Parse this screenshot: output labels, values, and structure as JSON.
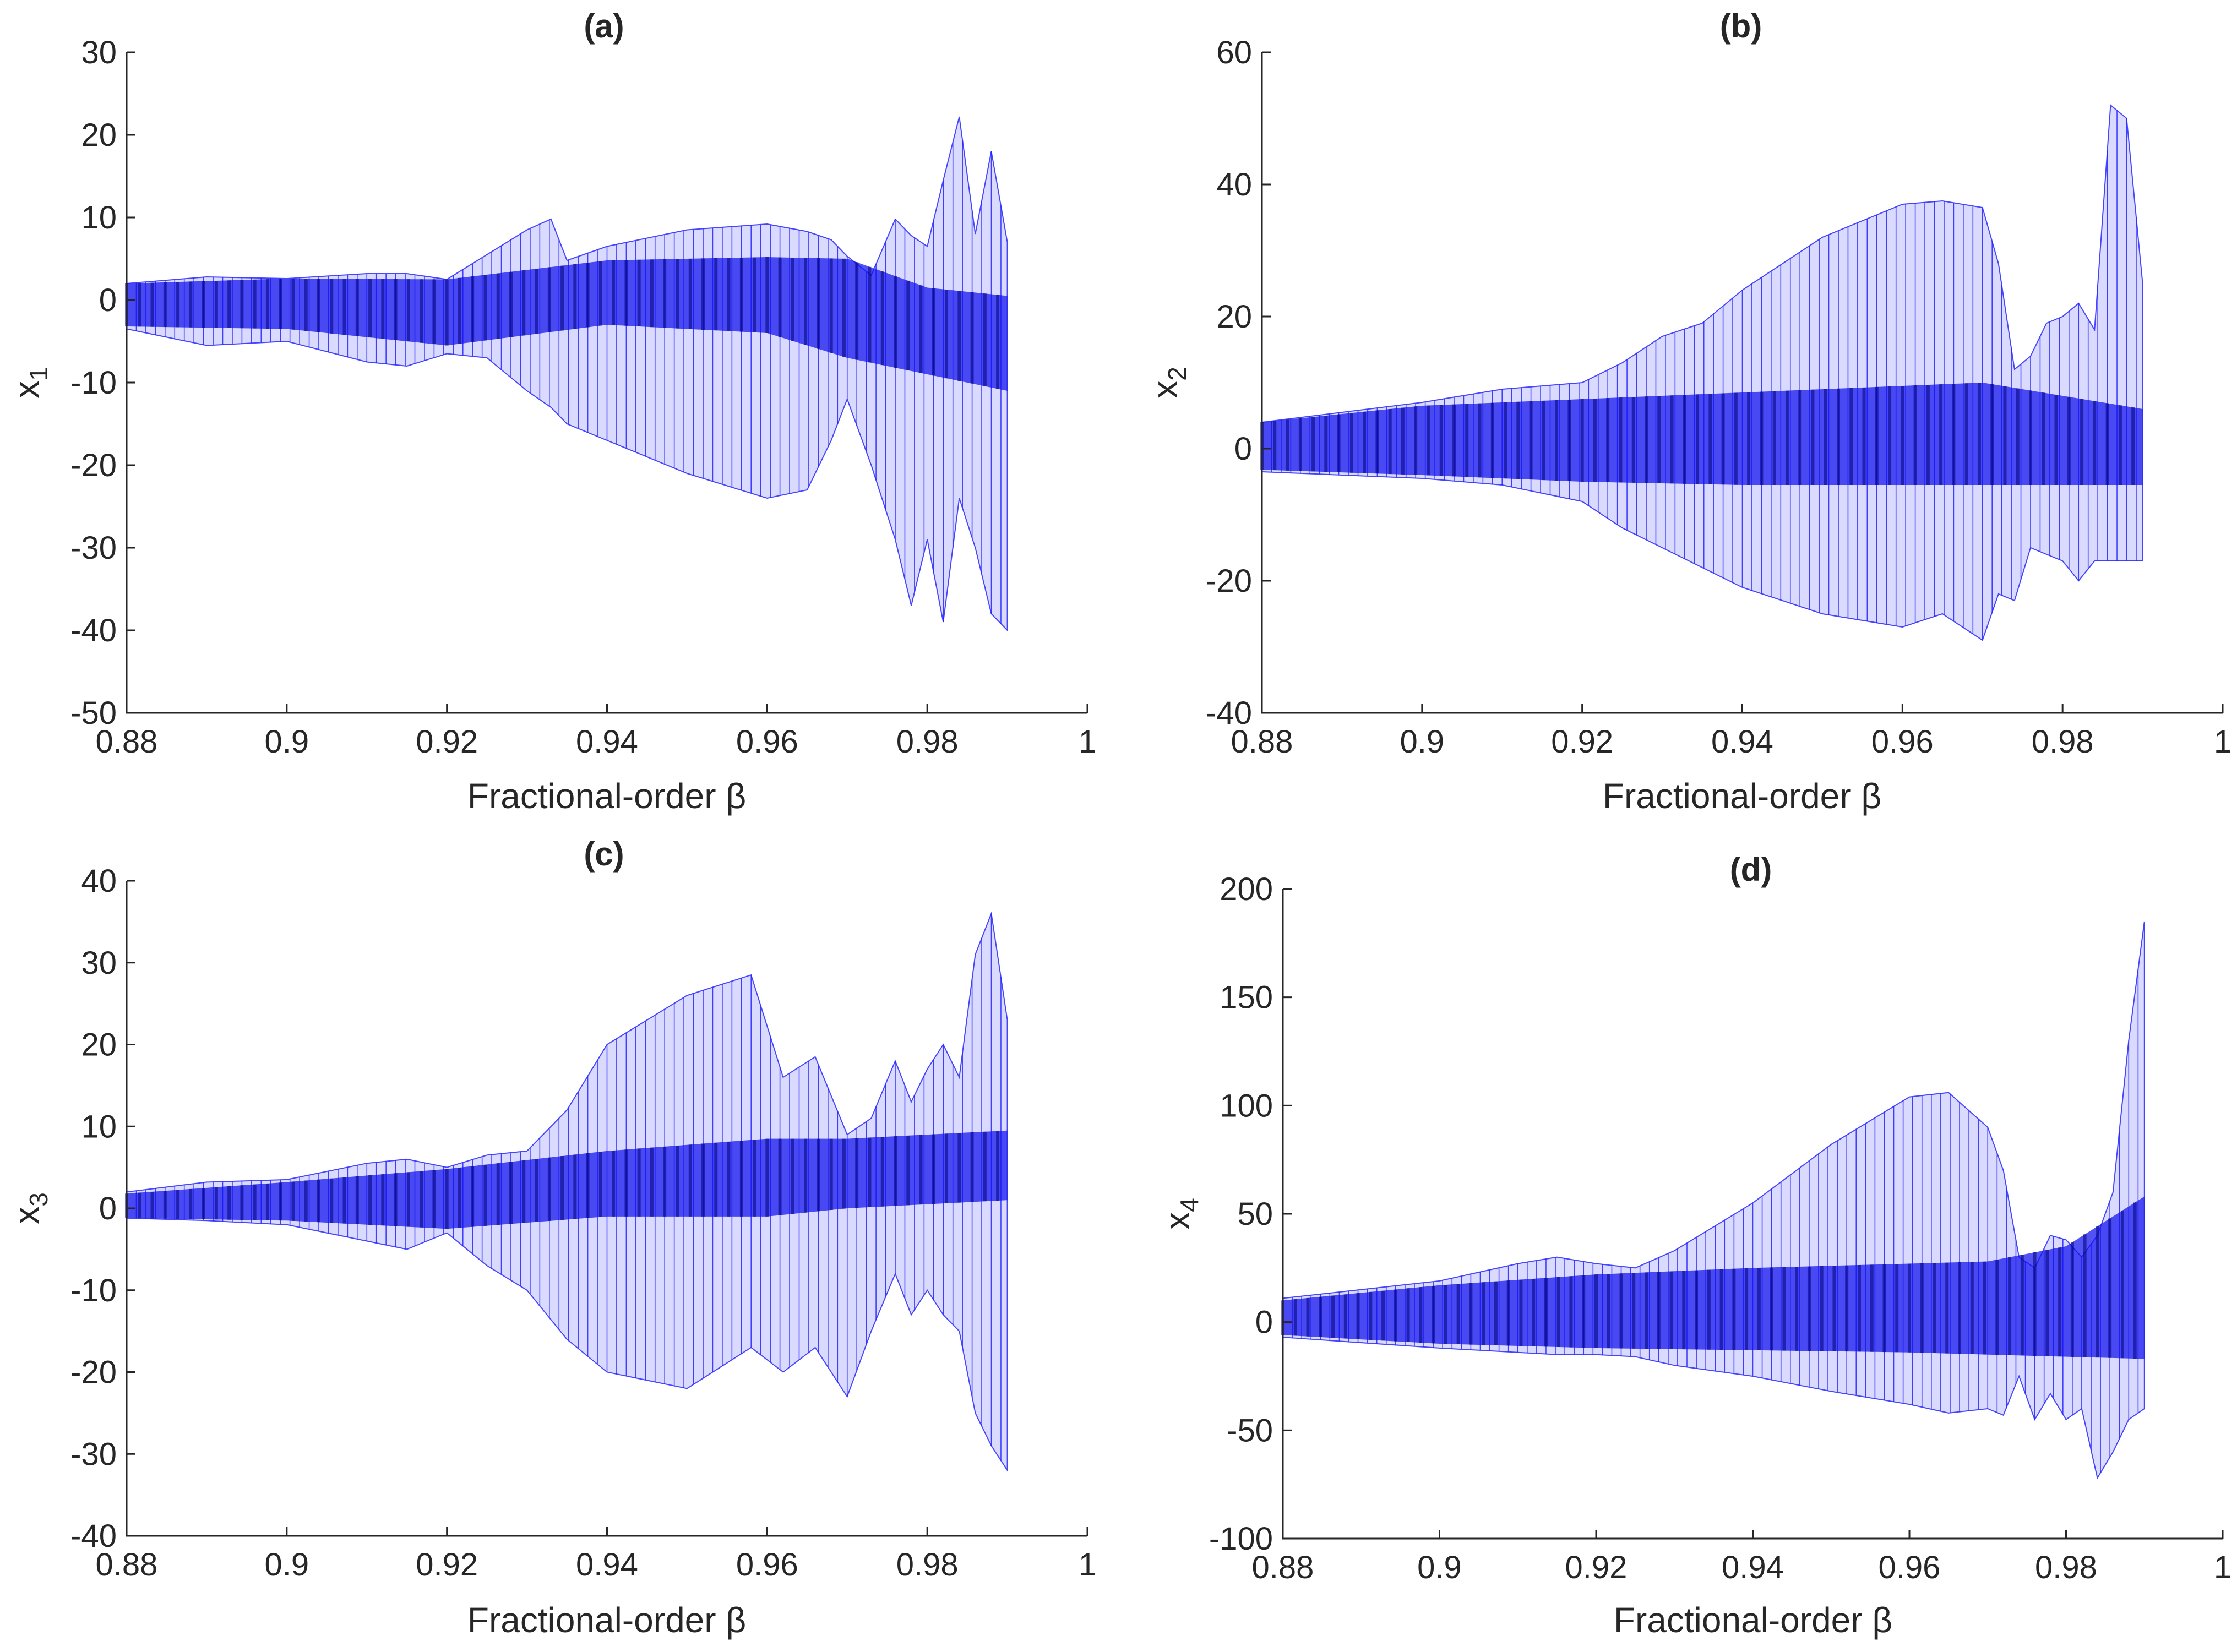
{
  "chart_data": [
    {
      "panel": "a",
      "type": "scatter",
      "title": "(a)",
      "xlabel": "Fractional-order β",
      "ylabel": "x",
      "ylabel_sub": "1",
      "xlim": [
        0.88,
        1
      ],
      "ylim": [
        -50,
        30
      ],
      "xticks": [
        "0.88",
        "0.9",
        "0.92",
        "0.94",
        "0.96",
        "0.98",
        "1"
      ],
      "xtick_values": [
        0.88,
        0.9,
        0.92,
        0.94,
        0.96,
        0.98,
        1
      ],
      "yticks": [
        "-50",
        "-40",
        "-30",
        "-20",
        "-10",
        "0",
        "10",
        "20",
        "30"
      ],
      "ytick_values": [
        -50,
        -40,
        -30,
        -20,
        -10,
        0,
        10,
        20,
        30
      ],
      "color": "#0000ff",
      "envelope": {
        "x": [
          0.88,
          0.89,
          0.9,
          0.91,
          0.915,
          0.92,
          0.925,
          0.93,
          0.933,
          0.935,
          0.94,
          0.95,
          0.96,
          0.965,
          0.968,
          0.97,
          0.973,
          0.976,
          0.978,
          0.98,
          0.982,
          0.984,
          0.986,
          0.988,
          0.99
        ],
        "upper": [
          2,
          2.8,
          2.6,
          3.2,
          3.2,
          2.5,
          5.5,
          8.5,
          9.8,
          4.8,
          6.5,
          8.5,
          9.2,
          8.3,
          7.3,
          5.3,
          3.0,
          9.8,
          7.8,
          6.5,
          14.5,
          22.2,
          8.0,
          18.0,
          7.0
        ],
        "lower": [
          -3.5,
          -5.5,
          -5.0,
          -7.5,
          -8.0,
          -6.5,
          -7.0,
          -11.0,
          -13.0,
          -15.0,
          -17.0,
          -21.0,
          -24.0,
          -23.0,
          -17.0,
          -12.0,
          -20.0,
          -29.0,
          -37.0,
          -29.0,
          -39.0,
          -24.0,
          -30.0,
          -38.0,
          -40.0
        ]
      },
      "core_band": {
        "x": [
          0.88,
          0.9,
          0.92,
          0.94,
          0.96,
          0.97,
          0.98,
          0.99
        ],
        "upper": [
          2,
          2.6,
          2.5,
          4.8,
          5.2,
          5.0,
          1.5,
          0.5
        ],
        "lower": [
          -3.2,
          -3.5,
          -5.5,
          -3.0,
          -4.0,
          -7.0,
          -9.0,
          -11.0
        ]
      }
    },
    {
      "panel": "b",
      "type": "scatter",
      "title": "(b)",
      "xlabel": "Fractional-order β",
      "ylabel": "x",
      "ylabel_sub": "2",
      "xlim": [
        0.88,
        1
      ],
      "ylim": [
        -40,
        60
      ],
      "xticks": [
        "0.88",
        "0.9",
        "0.92",
        "0.94",
        "0.96",
        "0.98",
        "1"
      ],
      "xtick_values": [
        0.88,
        0.9,
        0.92,
        0.94,
        0.96,
        0.98,
        1
      ],
      "yticks": [
        "-40",
        "-20",
        "0",
        "20",
        "40",
        "60"
      ],
      "ytick_values": [
        -40,
        -20,
        0,
        20,
        40,
        60
      ],
      "color": "#0000ff",
      "envelope": {
        "x": [
          0.88,
          0.9,
          0.91,
          0.92,
          0.925,
          0.93,
          0.935,
          0.94,
          0.95,
          0.96,
          0.965,
          0.97,
          0.972,
          0.974,
          0.976,
          0.978,
          0.98,
          0.982,
          0.984,
          0.986,
          0.988,
          0.99
        ],
        "upper": [
          4,
          7,
          9,
          10,
          13,
          17,
          19,
          24,
          32,
          37,
          37.5,
          36.5,
          28,
          12,
          14,
          19,
          20,
          22,
          18,
          52,
          50,
          25
        ],
        "lower": [
          -3.5,
          -4.5,
          -5.5,
          -8,
          -12,
          -15,
          -18,
          -21,
          -25,
          -27,
          -25,
          -29,
          -22,
          -23,
          -15,
          -16,
          -17,
          -20,
          -17,
          -17,
          -17,
          -17
        ]
      },
      "core_band": {
        "x": [
          0.88,
          0.9,
          0.92,
          0.94,
          0.96,
          0.97,
          0.98,
          0.99
        ],
        "upper": [
          4,
          6.5,
          7.5,
          8.5,
          9.5,
          10,
          8,
          6
        ],
        "lower": [
          -3.2,
          -4,
          -5,
          -5.5,
          -5.5,
          -5.5,
          -5.5,
          -5.5
        ]
      }
    },
    {
      "panel": "c",
      "type": "scatter",
      "title": "(c)",
      "xlabel": "Fractional-order β",
      "ylabel": "x",
      "ylabel_sub": "3",
      "xlim": [
        0.88,
        1
      ],
      "ylim": [
        -40,
        40
      ],
      "xticks": [
        "0.88",
        "0.9",
        "0.92",
        "0.94",
        "0.96",
        "0.98",
        "1"
      ],
      "xtick_values": [
        0.88,
        0.9,
        0.92,
        0.94,
        0.96,
        0.98,
        1
      ],
      "yticks": [
        "-40",
        "-30",
        "-20",
        "-10",
        "0",
        "10",
        "20",
        "30",
        "40"
      ],
      "ytick_values": [
        -40,
        -30,
        -20,
        -10,
        0,
        10,
        20,
        30,
        40
      ],
      "color": "#0000ff",
      "envelope": {
        "x": [
          0.88,
          0.89,
          0.9,
          0.91,
          0.915,
          0.92,
          0.925,
          0.93,
          0.935,
          0.94,
          0.95,
          0.958,
          0.962,
          0.966,
          0.97,
          0.973,
          0.976,
          0.978,
          0.98,
          0.982,
          0.984,
          0.986,
          0.988,
          0.99
        ],
        "upper": [
          2,
          3.2,
          3.5,
          5.5,
          6,
          5,
          6.5,
          7,
          12,
          20,
          26,
          28.5,
          16,
          18.5,
          9,
          11,
          18,
          13,
          17,
          20,
          16,
          31,
          36,
          23
        ],
        "lower": [
          -1.2,
          -1.5,
          -2,
          -4,
          -5,
          -3,
          -7,
          -10,
          -16,
          -20,
          -22,
          -17,
          -20,
          -17,
          -23,
          -15,
          -8,
          -13,
          -10,
          -13,
          -15,
          -25,
          -29,
          -32
        ]
      },
      "core_band": {
        "x": [
          0.88,
          0.9,
          0.92,
          0.94,
          0.96,
          0.97,
          0.98,
          0.99
        ],
        "upper": [
          1.8,
          3.2,
          4.8,
          7,
          8.5,
          8.5,
          9,
          9.5
        ],
        "lower": [
          -1.2,
          -1.5,
          -2.5,
          -1,
          -1,
          0,
          0.5,
          1
        ]
      }
    },
    {
      "panel": "d",
      "type": "scatter",
      "title": "(d)",
      "xlabel": "Fractional-order β",
      "ylabel": "x",
      "ylabel_sub": "4",
      "xlim": [
        0.88,
        1
      ],
      "ylim": [
        -100,
        200
      ],
      "xticks": [
        "0.88",
        "0.9",
        "0.92",
        "0.94",
        "0.96",
        "0.98",
        "1"
      ],
      "xtick_values": [
        0.88,
        0.9,
        0.92,
        0.94,
        0.96,
        0.98,
        1
      ],
      "yticks": [
        "-100",
        "-50",
        "0",
        "50",
        "100",
        "150",
        "200"
      ],
      "ytick_values": [
        -100,
        -50,
        0,
        50,
        100,
        150,
        200
      ],
      "color": "#0000ff",
      "envelope": {
        "x": [
          0.88,
          0.9,
          0.91,
          0.915,
          0.92,
          0.925,
          0.93,
          0.94,
          0.95,
          0.96,
          0.965,
          0.97,
          0.972,
          0.974,
          0.976,
          0.978,
          0.98,
          0.982,
          0.984,
          0.986,
          0.988,
          0.99
        ],
        "upper": [
          11,
          19,
          27,
          30,
          27,
          25,
          33,
          55,
          82,
          104,
          106,
          90,
          70,
          30,
          25,
          40,
          38,
          30,
          40,
          60,
          130,
          185
        ],
        "lower": [
          -7,
          -12,
          -14,
          -15,
          -15,
          -16,
          -20,
          -25,
          -32,
          -38,
          -42,
          -40,
          -43,
          -25,
          -45,
          -33,
          -45,
          -40,
          -72,
          -60,
          -45,
          -40
        ]
      },
      "core_band": {
        "x": [
          0.88,
          0.9,
          0.92,
          0.94,
          0.96,
          0.97,
          0.98,
          0.99
        ],
        "upper": [
          10,
          17,
          22,
          25,
          27,
          28,
          35,
          58
        ],
        "lower": [
          -6,
          -10,
          -12,
          -13,
          -14,
          -15,
          -16,
          -17
        ]
      }
    }
  ]
}
